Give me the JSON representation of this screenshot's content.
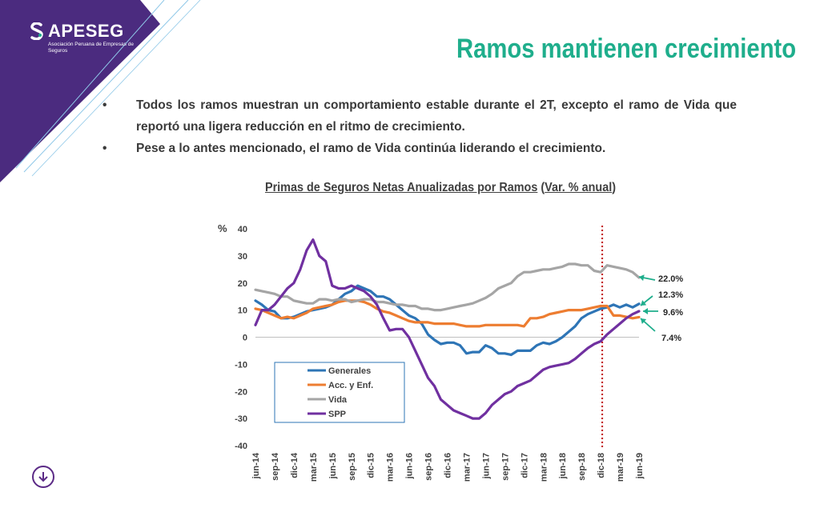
{
  "brand": {
    "name": "APESEG",
    "subtitle": "Asociación Peruana de Empresas de Seguros",
    "colors": {
      "purple": "#4b2b7f",
      "teal": "#1fae8c",
      "light_blue": "#8fc8e8"
    }
  },
  "header": {
    "title": "Ramos mantienen crecimiento"
  },
  "bullets": [
    "Todos los ramos muestran un comportamiento estable durante el 2T, excepto el ramo de Vida que reportó una ligera reducción en el ritmo de crecimiento.",
    "Pese a lo antes mencionado, el ramo de Vida continúa liderando el crecimiento."
  ],
  "chart_title": {
    "main": "Primas de Seguros Netas Anualizadas por Ramos",
    "paren_open": " (",
    "unit": "Var. % anual",
    "paren_close": ")"
  },
  "nav": {
    "icon": "down-arrow-circle-icon"
  },
  "chart_data": {
    "type": "line",
    "ylabel": "%",
    "ylim": [
      -40,
      40
    ],
    "yticks": [
      40,
      30,
      20,
      10,
      0,
      -10,
      -20,
      -30,
      -40
    ],
    "xticks": [
      "jun-14",
      "sep-14",
      "dic-14",
      "mar-15",
      "jun-15",
      "sep-15",
      "dic-15",
      "mar-16",
      "jun-16",
      "sep-16",
      "dic-16",
      "mar-17",
      "jun-17",
      "sep-17",
      "dic-17",
      "mar-18",
      "jun-18",
      "sep-18",
      "dic-18",
      "mar-19",
      "jun-19"
    ],
    "x_start": "jun-14",
    "x_end": "jun-19",
    "vline": "dic-18",
    "legend_position": "lower-left",
    "series": [
      {
        "name": "Generales",
        "color": "#2e75b6",
        "values": [
          13.5,
          12,
          10,
          9.5,
          7,
          7,
          7.5,
          8.5,
          9.5,
          10,
          10.5,
          11,
          12,
          14,
          16,
          17,
          19,
          18,
          17,
          15,
          15,
          14,
          12,
          10,
          8,
          7,
          5,
          1,
          -1,
          -2.5,
          -2,
          -2,
          -3,
          -6,
          -5.5,
          -5.5,
          -3,
          -4,
          -6,
          -6,
          -6.5,
          -5,
          -5,
          -5,
          -3,
          -2,
          -2.5,
          -1.5,
          0,
          2,
          4,
          7,
          8.5,
          9.5,
          10.5,
          11,
          12,
          11,
          12,
          11,
          12.3
        ]
      },
      {
        "name": "Acc. y Enf.",
        "color": "#ed7d31",
        "values": [
          10.5,
          10,
          9,
          8,
          7,
          7.5,
          7,
          8,
          9,
          10.5,
          11,
          11.5,
          12,
          13,
          13.5,
          13.5,
          13.5,
          13,
          12,
          10.5,
          9.5,
          9,
          8,
          7,
          6,
          5.5,
          5.5,
          5.5,
          5,
          5,
          5,
          5,
          4.5,
          4,
          4,
          4,
          4.5,
          4.5,
          4.5,
          4.5,
          4.5,
          4.5,
          4,
          7,
          7,
          7.5,
          8.5,
          9,
          9.5,
          10,
          10,
          10,
          10.5,
          11,
          11.5,
          11.5,
          8,
          8,
          7.5,
          7,
          7.4
        ]
      },
      {
        "name": "Vida",
        "color": "#a5a5a5",
        "values": [
          17.5,
          17,
          16.5,
          16,
          15,
          15,
          13.5,
          13,
          12.5,
          12.5,
          14,
          14,
          13.5,
          14,
          14,
          13,
          13.5,
          14,
          14,
          13,
          13,
          12.5,
          12,
          12,
          11.5,
          11.5,
          10.5,
          10.5,
          10,
          10,
          10.5,
          11,
          11.5,
          12,
          12.5,
          13.5,
          14.5,
          16,
          18,
          19,
          20,
          22.5,
          24,
          24,
          24.5,
          25,
          25,
          25.5,
          26,
          27,
          27,
          26.5,
          26.5,
          24.5,
          24,
          26.5,
          26,
          25.5,
          25,
          24,
          22
        ]
      },
      {
        "name": "SPP",
        "color": "#7030a0",
        "values": [
          4.5,
          10,
          10,
          12,
          15,
          18,
          20,
          25,
          32,
          36,
          30,
          28,
          19,
          18,
          18,
          19,
          18,
          17,
          15,
          12,
          7,
          2.5,
          3,
          3,
          0,
          -5,
          -10,
          -15,
          -18,
          -23,
          -25,
          -27,
          -28,
          -29,
          -30,
          -30,
          -28,
          -25,
          -23,
          -21,
          -20,
          -18,
          -17,
          -16,
          -14,
          -12,
          -11,
          -10.5,
          -10,
          -9.5,
          -8,
          -6,
          -4,
          -2.5,
          -1.5,
          1,
          3,
          5,
          7,
          8.5,
          9.6
        ]
      }
    ],
    "annotations": [
      {
        "label": "22.0%",
        "color": "#1fae8c"
      },
      {
        "label": "12.3%",
        "color": "#1fae8c"
      },
      {
        "label": "9.6%",
        "color": "#1fae8c"
      },
      {
        "label": "7.4%",
        "color": "#1fae8c"
      }
    ]
  }
}
